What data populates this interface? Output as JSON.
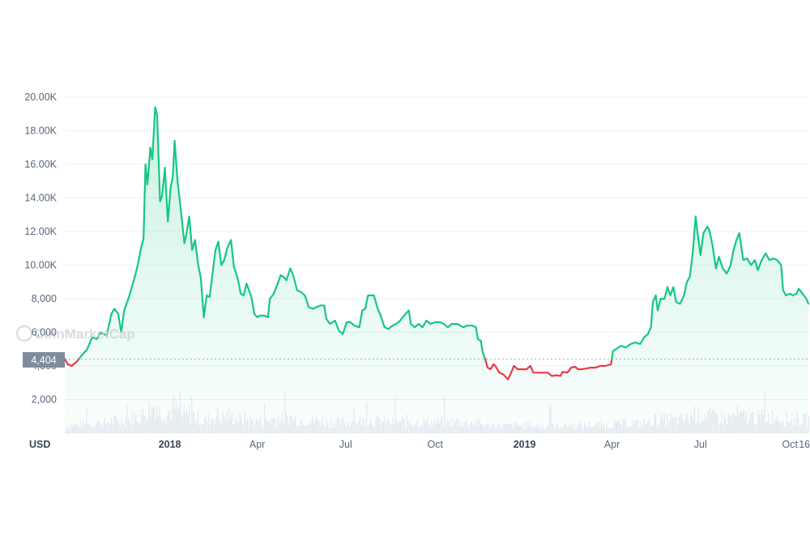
{
  "chart_data": {
    "type": "line",
    "currency_label": "USD",
    "watermark": "CoinMarketCap",
    "reference_value": 4404,
    "reference_label": "4,404",
    "ylim": [
      0,
      20000
    ],
    "y_ticks": [
      {
        "value": 2000,
        "label": "2,000"
      },
      {
        "value": 4000,
        "label": "4,000"
      },
      {
        "value": 6000,
        "label": "6,000"
      },
      {
        "value": 8000,
        "label": "8,000"
      },
      {
        "value": 10000,
        "label": "10.00K"
      },
      {
        "value": 12000,
        "label": "12.00K"
      },
      {
        "value": 14000,
        "label": "14.00K"
      },
      {
        "value": 16000,
        "label": "16.00K"
      },
      {
        "value": 18000,
        "label": "18.00K"
      },
      {
        "value": 20000,
        "label": "20.00K"
      }
    ],
    "xlim": [
      "2017-09-15",
      "2019-10-20"
    ],
    "x_ticks": [
      {
        "date": "2018-01-01",
        "label": "2018",
        "bold": true
      },
      {
        "date": "2018-04-01",
        "label": "Apr",
        "bold": false
      },
      {
        "date": "2018-07-01",
        "label": "Jul",
        "bold": false
      },
      {
        "date": "2018-10-01",
        "label": "Oct",
        "bold": false
      },
      {
        "date": "2019-01-01",
        "label": "2019",
        "bold": true
      },
      {
        "date": "2019-04-01",
        "label": "Apr",
        "bold": false
      },
      {
        "date": "2019-07-01",
        "label": "Jul",
        "bold": false
      },
      {
        "date": "2019-10-01",
        "label": "Oct",
        "bold": false
      },
      {
        "date": "2019-10-16",
        "label": "16",
        "bold": false
      }
    ],
    "colors": {
      "up": "#16c784",
      "down": "#ea3943",
      "area": "#16c784",
      "volume": "#cfd6e4",
      "grid": "#eff2f5",
      "reference": "#808a9d"
    },
    "series": [
      {
        "values": [
          [
            "2017-09-15",
            4404
          ],
          [
            "2017-09-18",
            4100
          ],
          [
            "2017-09-22",
            4000
          ],
          [
            "2017-09-28",
            4300
          ],
          [
            "2017-10-02",
            4600
          ],
          [
            "2017-10-08",
            5000
          ],
          [
            "2017-10-13",
            5700
          ],
          [
            "2017-10-18",
            5600
          ],
          [
            "2017-10-22",
            6000
          ],
          [
            "2017-10-28",
            5800
          ],
          [
            "2017-11-02",
            7100
          ],
          [
            "2017-11-05",
            7400
          ],
          [
            "2017-11-09",
            7100
          ],
          [
            "2017-11-12",
            6000
          ],
          [
            "2017-11-15",
            7300
          ],
          [
            "2017-11-20",
            8100
          ],
          [
            "2017-11-26",
            9300
          ],
          [
            "2017-11-29",
            10000
          ],
          [
            "2017-12-02",
            10900
          ],
          [
            "2017-12-05",
            11600
          ],
          [
            "2017-12-07",
            16000
          ],
          [
            "2017-12-09",
            14800
          ],
          [
            "2017-12-12",
            17000
          ],
          [
            "2017-12-14",
            16300
          ],
          [
            "2017-12-17",
            19400
          ],
          [
            "2017-12-19",
            18900
          ],
          [
            "2017-12-22",
            13800
          ],
          [
            "2017-12-24",
            14100
          ],
          [
            "2017-12-27",
            15800
          ],
          [
            "2017-12-30",
            12600
          ],
          [
            "2018-01-02",
            14700
          ],
          [
            "2018-01-04",
            15200
          ],
          [
            "2018-01-06",
            17400
          ],
          [
            "2018-01-09",
            15000
          ],
          [
            "2018-01-12",
            13500
          ],
          [
            "2018-01-16",
            11300
          ],
          [
            "2018-01-18",
            11800
          ],
          [
            "2018-01-21",
            12900
          ],
          [
            "2018-01-24",
            10900
          ],
          [
            "2018-01-27",
            11500
          ],
          [
            "2018-01-30",
            10100
          ],
          [
            "2018-02-02",
            9200
          ],
          [
            "2018-02-05",
            6900
          ],
          [
            "2018-02-08",
            8200
          ],
          [
            "2018-02-11",
            8100
          ],
          [
            "2018-02-14",
            9500
          ],
          [
            "2018-02-17",
            10900
          ],
          [
            "2018-02-20",
            11400
          ],
          [
            "2018-02-23",
            10000
          ],
          [
            "2018-02-26",
            10300
          ],
          [
            "2018-03-01",
            11000
          ],
          [
            "2018-03-05",
            11500
          ],
          [
            "2018-03-08",
            9900
          ],
          [
            "2018-03-12",
            9200
          ],
          [
            "2018-03-15",
            8300
          ],
          [
            "2018-03-18",
            8200
          ],
          [
            "2018-03-21",
            8900
          ],
          [
            "2018-03-26",
            8100
          ],
          [
            "2018-03-29",
            7100
          ],
          [
            "2018-04-01",
            6900
          ],
          [
            "2018-04-04",
            7000
          ],
          [
            "2018-04-08",
            7000
          ],
          [
            "2018-04-12",
            6900
          ],
          [
            "2018-04-14",
            8000
          ],
          [
            "2018-04-18",
            8300
          ],
          [
            "2018-04-22",
            8900
          ],
          [
            "2018-04-25",
            9400
          ],
          [
            "2018-04-28",
            9300
          ],
          [
            "2018-05-01",
            9100
          ],
          [
            "2018-05-05",
            9800
          ],
          [
            "2018-05-08",
            9400
          ],
          [
            "2018-05-12",
            8500
          ],
          [
            "2018-05-16",
            8400
          ],
          [
            "2018-05-20",
            8200
          ],
          [
            "2018-05-24",
            7500
          ],
          [
            "2018-05-28",
            7400
          ],
          [
            "2018-06-01",
            7500
          ],
          [
            "2018-06-05",
            7600
          ],
          [
            "2018-06-09",
            7600
          ],
          [
            "2018-06-11",
            6800
          ],
          [
            "2018-06-15",
            6500
          ],
          [
            "2018-06-20",
            6700
          ],
          [
            "2018-06-24",
            6100
          ],
          [
            "2018-06-28",
            5900
          ],
          [
            "2018-07-02",
            6600
          ],
          [
            "2018-07-06",
            6600
          ],
          [
            "2018-07-10",
            6400
          ],
          [
            "2018-07-15",
            6300
          ],
          [
            "2018-07-18",
            7300
          ],
          [
            "2018-07-21",
            7400
          ],
          [
            "2018-07-24",
            8200
          ],
          [
            "2018-07-27",
            8200
          ],
          [
            "2018-07-30",
            8200
          ],
          [
            "2018-08-03",
            7400
          ],
          [
            "2018-08-06",
            7000
          ],
          [
            "2018-08-10",
            6300
          ],
          [
            "2018-08-14",
            6200
          ],
          [
            "2018-08-18",
            6400
          ],
          [
            "2018-08-22",
            6500
          ],
          [
            "2018-08-26",
            6700
          ],
          [
            "2018-08-30",
            7000
          ],
          [
            "2018-09-04",
            7300
          ],
          [
            "2018-09-06",
            6500
          ],
          [
            "2018-09-10",
            6300
          ],
          [
            "2018-09-14",
            6500
          ],
          [
            "2018-09-18",
            6300
          ],
          [
            "2018-09-22",
            6700
          ],
          [
            "2018-09-26",
            6500
          ],
          [
            "2018-10-01",
            6600
          ],
          [
            "2018-10-06",
            6600
          ],
          [
            "2018-10-10",
            6500
          ],
          [
            "2018-10-14",
            6300
          ],
          [
            "2018-10-18",
            6500
          ],
          [
            "2018-10-24",
            6500
          ],
          [
            "2018-10-30",
            6300
          ],
          [
            "2018-11-03",
            6400
          ],
          [
            "2018-11-08",
            6400
          ],
          [
            "2018-11-12",
            6300
          ],
          [
            "2018-11-14",
            5600
          ],
          [
            "2018-11-17",
            5500
          ],
          [
            "2018-11-19",
            4800
          ],
          [
            "2018-11-21",
            4500
          ],
          [
            "2018-11-24",
            3900
          ],
          [
            "2018-11-27",
            3800
          ],
          [
            "2018-11-30",
            4100
          ],
          [
            "2018-12-02",
            4000
          ],
          [
            "2018-12-06",
            3600
          ],
          [
            "2018-12-10",
            3500
          ],
          [
            "2018-12-15",
            3200
          ],
          [
            "2018-12-19",
            3700
          ],
          [
            "2018-12-21",
            4000
          ],
          [
            "2018-12-25",
            3800
          ],
          [
            "2018-12-29",
            3800
          ],
          [
            "2019-01-03",
            3800
          ],
          [
            "2019-01-07",
            4000
          ],
          [
            "2019-01-10",
            3600
          ],
          [
            "2019-01-15",
            3600
          ],
          [
            "2019-01-20",
            3600
          ],
          [
            "2019-01-25",
            3600
          ],
          [
            "2019-01-29",
            3400
          ],
          [
            "2019-02-03",
            3450
          ],
          [
            "2019-02-07",
            3400
          ],
          [
            "2019-02-09",
            3650
          ],
          [
            "2019-02-14",
            3600
          ],
          [
            "2019-02-18",
            3900
          ],
          [
            "2019-02-22",
            3950
          ],
          [
            "2019-02-25",
            3800
          ],
          [
            "2019-03-01",
            3800
          ],
          [
            "2019-03-06",
            3850
          ],
          [
            "2019-03-10",
            3900
          ],
          [
            "2019-03-15",
            3900
          ],
          [
            "2019-03-20",
            4000
          ],
          [
            "2019-03-25",
            4000
          ],
          [
            "2019-03-31",
            4100
          ],
          [
            "2019-04-02",
            4900
          ],
          [
            "2019-04-05",
            5000
          ],
          [
            "2019-04-10",
            5200
          ],
          [
            "2019-04-15",
            5100
          ],
          [
            "2019-04-20",
            5300
          ],
          [
            "2019-04-25",
            5400
          ],
          [
            "2019-04-30",
            5300
          ],
          [
            "2019-05-04",
            5700
          ],
          [
            "2019-05-08",
            5900
          ],
          [
            "2019-05-11",
            6300
          ],
          [
            "2019-05-13",
            7800
          ],
          [
            "2019-05-16",
            8200
          ],
          [
            "2019-05-18",
            7300
          ],
          [
            "2019-05-21",
            8000
          ],
          [
            "2019-05-25",
            8000
          ],
          [
            "2019-05-28",
            8700
          ],
          [
            "2019-05-31",
            8200
          ],
          [
            "2019-06-03",
            8700
          ],
          [
            "2019-06-06",
            7800
          ],
          [
            "2019-06-10",
            7700
          ],
          [
            "2019-06-14",
            8200
          ],
          [
            "2019-06-17",
            9000
          ],
          [
            "2019-06-20",
            9300
          ],
          [
            "2019-06-23",
            10700
          ],
          [
            "2019-06-26",
            12900
          ],
          [
            "2019-06-28",
            11900
          ],
          [
            "2019-07-01",
            10600
          ],
          [
            "2019-07-04",
            11900
          ],
          [
            "2019-07-08",
            12300
          ],
          [
            "2019-07-10",
            12100
          ],
          [
            "2019-07-13",
            11300
          ],
          [
            "2019-07-17",
            9800
          ],
          [
            "2019-07-20",
            10500
          ],
          [
            "2019-07-24",
            9800
          ],
          [
            "2019-07-28",
            9500
          ],
          [
            "2019-08-01",
            10000
          ],
          [
            "2019-08-04",
            10900
          ],
          [
            "2019-08-07",
            11500
          ],
          [
            "2019-08-10",
            11900
          ],
          [
            "2019-08-14",
            10300
          ],
          [
            "2019-08-18",
            10400
          ],
          [
            "2019-08-22",
            10000
          ],
          [
            "2019-08-26",
            10300
          ],
          [
            "2019-08-29",
            9700
          ],
          [
            "2019-09-02",
            10300
          ],
          [
            "2019-09-06",
            10700
          ],
          [
            "2019-09-10",
            10300
          ],
          [
            "2019-09-14",
            10400
          ],
          [
            "2019-09-18",
            10300
          ],
          [
            "2019-09-22",
            10000
          ],
          [
            "2019-09-24",
            8500
          ],
          [
            "2019-09-27",
            8200
          ],
          [
            "2019-10-01",
            8300
          ],
          [
            "2019-10-04",
            8200
          ],
          [
            "2019-10-08",
            8300
          ],
          [
            "2019-10-10",
            8600
          ],
          [
            "2019-10-14",
            8300
          ],
          [
            "2019-10-18",
            8000
          ],
          [
            "2019-10-20",
            7700
          ]
        ]
      }
    ]
  }
}
